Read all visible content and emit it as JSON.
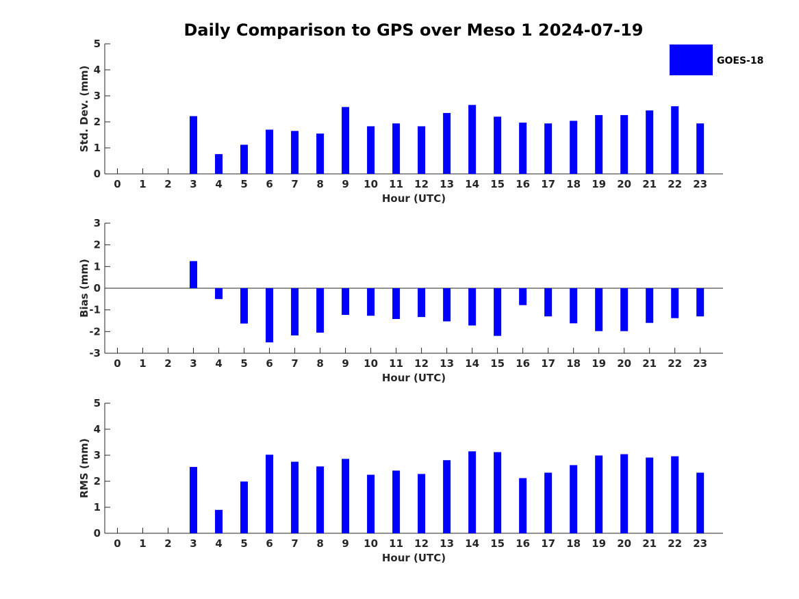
{
  "title": "Daily Comparison to GPS over Meso 1 2024-07-19",
  "legend": {
    "label": "GOES-18",
    "color": "#0000ff"
  },
  "chart_data": [
    {
      "type": "bar",
      "x": [
        0,
        1,
        2,
        3,
        4,
        5,
        6,
        7,
        8,
        9,
        10,
        11,
        12,
        13,
        14,
        15,
        16,
        17,
        18,
        19,
        20,
        21,
        22,
        23
      ],
      "series": [
        {
          "name": "GOES-18",
          "values": [
            null,
            null,
            null,
            2.22,
            0.76,
            1.12,
            1.7,
            1.65,
            1.55,
            2.57,
            1.83,
            1.94,
            1.83,
            2.34,
            2.65,
            2.2,
            1.97,
            1.94,
            2.04,
            2.26,
            2.26,
            2.44,
            2.6,
            1.94
          ]
        }
      ],
      "xlabel": "Hour (UTC)",
      "ylabel": "Std. Dev. (mm)",
      "xlim": [
        -0.5,
        23.9
      ],
      "ylim": [
        0,
        5
      ],
      "yticks": [
        0,
        1,
        2,
        3,
        4,
        5
      ],
      "color": "#0000ff",
      "legend": "top-right"
    },
    {
      "type": "bar",
      "x": [
        0,
        1,
        2,
        3,
        4,
        5,
        6,
        7,
        8,
        9,
        10,
        11,
        12,
        13,
        14,
        15,
        16,
        17,
        18,
        19,
        20,
        21,
        22,
        23
      ],
      "series": [
        {
          "name": "GOES-18",
          "values": [
            null,
            null,
            null,
            1.25,
            -0.5,
            -1.63,
            -2.5,
            -2.18,
            -2.05,
            -1.23,
            -1.27,
            -1.42,
            -1.33,
            -1.53,
            -1.72,
            -2.2,
            -0.78,
            -1.3,
            -1.62,
            -1.98,
            -1.98,
            -1.6,
            -1.38,
            -1.3
          ]
        }
      ],
      "xlabel": "Hour (UTC)",
      "ylabel": "Bias (mm)",
      "xlim": [
        -0.5,
        23.9
      ],
      "ylim": [
        -3,
        3
      ],
      "yticks": [
        -3,
        -2,
        -1,
        0,
        1,
        2,
        3
      ],
      "color": "#0000ff",
      "zero_line": true
    },
    {
      "type": "bar",
      "x": [
        0,
        1,
        2,
        3,
        4,
        5,
        6,
        7,
        8,
        9,
        10,
        11,
        12,
        13,
        14,
        15,
        16,
        17,
        18,
        19,
        20,
        21,
        22,
        23
      ],
      "series": [
        {
          "name": "GOES-18",
          "values": [
            null,
            null,
            null,
            2.55,
            0.9,
            1.99,
            3.02,
            2.75,
            2.57,
            2.86,
            2.25,
            2.41,
            2.28,
            2.81,
            3.15,
            3.12,
            2.12,
            2.33,
            2.62,
            2.99,
            3.04,
            2.91,
            2.96,
            2.33
          ]
        }
      ],
      "xlabel": "Hour (UTC)",
      "ylabel": "RMS (mm)",
      "xlim": [
        -0.5,
        23.9
      ],
      "ylim": [
        0,
        5
      ],
      "yticks": [
        0,
        1,
        2,
        3,
        4,
        5
      ],
      "color": "#0000ff"
    }
  ]
}
